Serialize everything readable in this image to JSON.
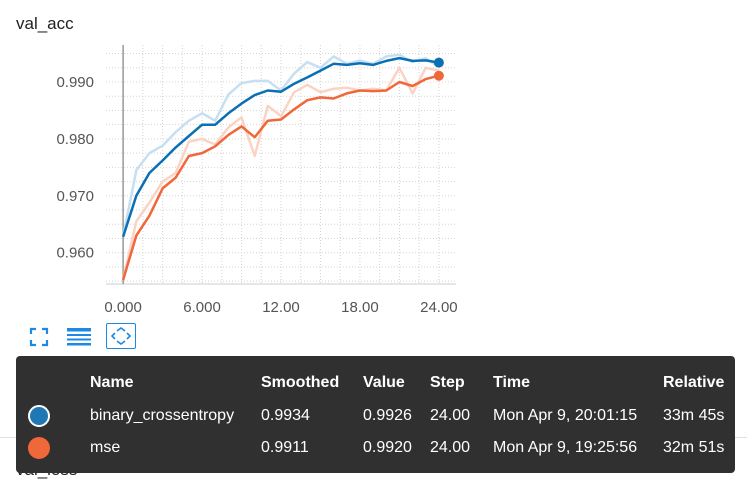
{
  "panel": {
    "title": "val_acc",
    "next_title": "val_loss",
    "next_title_partial": "val_los"
  },
  "toolbar": [
    {
      "name": "fit-domain-icon",
      "active": false
    },
    {
      "name": "list-icon",
      "active": false
    },
    {
      "name": "expand-icon",
      "active": true
    }
  ],
  "chart_data": {
    "type": "line",
    "title": "val_acc",
    "xlabel": "",
    "ylabel": "",
    "xlim": [
      -1.3,
      25.3
    ],
    "ylim": [
      0.9545,
      0.9965
    ],
    "x_ticks": [
      0,
      6,
      12,
      18,
      24
    ],
    "x_tick_labels": [
      "0.000",
      "6.000",
      "12.00",
      "18.00",
      "24.00"
    ],
    "y_ticks": [
      0.96,
      0.97,
      0.98,
      0.99
    ],
    "y_tick_labels": [
      "0.960",
      "0.970",
      "0.980",
      "0.990"
    ],
    "grid": true,
    "series": [
      {
        "name": "binary_crossentropy",
        "color": "#0b6fb4",
        "raw_color": "#c6dff1",
        "x": [
          0,
          1,
          2,
          3,
          4,
          5,
          6,
          7,
          8,
          9,
          10,
          11,
          12,
          13,
          14,
          15,
          16,
          17,
          18,
          19,
          20,
          21,
          22,
          23,
          24
        ],
        "raw": [
          0.9628,
          0.9745,
          0.9775,
          0.9788,
          0.9812,
          0.9832,
          0.9845,
          0.9832,
          0.9878,
          0.9898,
          0.9902,
          0.9902,
          0.9885,
          0.9915,
          0.9935,
          0.9925,
          0.9945,
          0.9932,
          0.9938,
          0.9932,
          0.9945,
          0.9948,
          0.9935,
          0.9942,
          0.9926
        ],
        "smoothed": [
          0.9628,
          0.97,
          0.974,
          0.9762,
          0.9785,
          0.9805,
          0.9825,
          0.9825,
          0.9845,
          0.9862,
          0.9877,
          0.9885,
          0.9883,
          0.9897,
          0.9908,
          0.992,
          0.9932,
          0.993,
          0.9933,
          0.993,
          0.9937,
          0.9942,
          0.9937,
          0.9938,
          0.9934
        ]
      },
      {
        "name": "mse",
        "color": "#f0673a",
        "raw_color": "#fbd3c4",
        "x": [
          0,
          1,
          2,
          3,
          4,
          5,
          6,
          7,
          8,
          9,
          10,
          11,
          12,
          13,
          14,
          15,
          16,
          17,
          18,
          19,
          20,
          21,
          22,
          23,
          24
        ],
        "raw": [
          0.9552,
          0.9655,
          0.9688,
          0.9725,
          0.974,
          0.9795,
          0.98,
          0.979,
          0.982,
          0.9838,
          0.977,
          0.9858,
          0.984,
          0.9882,
          0.9895,
          0.9882,
          0.9888,
          0.989,
          0.9885,
          0.9888,
          0.9885,
          0.9925,
          0.988,
          0.9925,
          0.992
        ],
        "smoothed": [
          0.9552,
          0.963,
          0.9665,
          0.9713,
          0.9732,
          0.977,
          0.9775,
          0.9787,
          0.9807,
          0.9822,
          0.9803,
          0.9832,
          0.9834,
          0.9852,
          0.9868,
          0.9873,
          0.9871,
          0.988,
          0.9885,
          0.9884,
          0.9885,
          0.99,
          0.9893,
          0.9905,
          0.9911
        ]
      }
    ]
  },
  "tooltip": {
    "headers": {
      "name": "Name",
      "smoothed": "Smoothed",
      "value": "Value",
      "step": "Step",
      "time": "Time",
      "relative": "Relative"
    },
    "rows": [
      {
        "swatch_color": "#1f77b4",
        "name": "binary_crossentropy",
        "smoothed": "0.9934",
        "value": "0.9926",
        "step": "24.00",
        "time": "Mon Apr 9, 20:01:15",
        "relative": "33m 45s"
      },
      {
        "swatch_color": "#f0673a",
        "name": "mse",
        "smoothed": "0.9911",
        "value": "0.9920",
        "step": "24.00",
        "time": "Mon Apr 9, 19:25:56",
        "relative": "32m 51s"
      }
    ]
  }
}
